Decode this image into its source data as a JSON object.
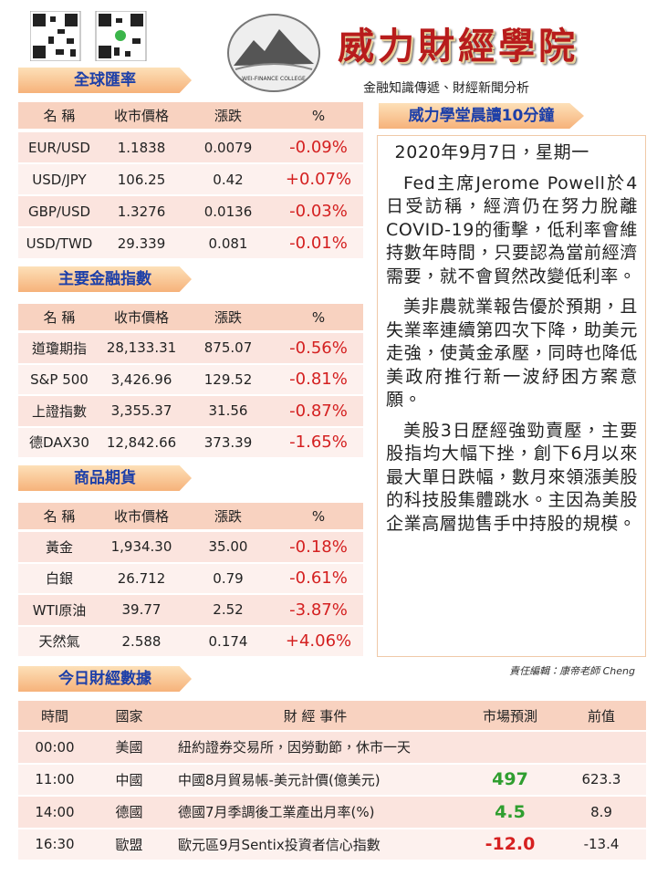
{
  "header": {
    "title": "威力財經學院",
    "subtitle": "金融知識傳遞、財經新聞分析",
    "logo_text": "WEI-FINANCE COLLEGE"
  },
  "fx": {
    "title": "全球匯率",
    "header": [
      "名 稱",
      "收市價格",
      "漲跌",
      "%"
    ],
    "rows": [
      [
        "EUR/USD",
        "1.1838",
        "0.0079",
        "-0.09%"
      ],
      [
        "USD/JPY",
        "106.25",
        "0.42",
        "+0.07%"
      ],
      [
        "GBP/USD",
        "1.3276",
        "0.0136",
        "-0.03%"
      ],
      [
        "USD/TWD",
        "29.339",
        "0.081",
        "-0.01%"
      ]
    ]
  },
  "indices": {
    "title": "主要金融指數",
    "header": [
      "名 稱",
      "收市價格",
      "漲跌",
      "%"
    ],
    "rows": [
      [
        "道瓊期指",
        "28,133.31",
        "875.07",
        "-0.56%"
      ],
      [
        "S&P 500",
        "3,426.96",
        "129.52",
        "-0.81%"
      ],
      [
        "上證指數",
        "3,355.37",
        "31.56",
        "-0.87%"
      ],
      [
        "德DAX30",
        "12,842.66",
        "373.39",
        "-1.65%"
      ]
    ]
  },
  "commodities": {
    "title": "商品期貨",
    "header": [
      "名 稱",
      "收市價格",
      "漲跌",
      "%"
    ],
    "rows": [
      [
        "黃金",
        "1,934.30",
        "35.00",
        "-0.18%"
      ],
      [
        "白銀",
        "26.712",
        "0.79",
        "-0.61%"
      ],
      [
        "WTI原油",
        "39.77",
        "2.52",
        "-3.87%"
      ],
      [
        "天然氣",
        "2.588",
        "0.174",
        "+4.06%"
      ]
    ]
  },
  "article": {
    "title": "威力學堂晨讀10分鐘",
    "date": "2020年9月7日，星期一",
    "paragraphs": [
      "Fed主席Jerome Powell於4日受訪稱，經濟仍在努力脫離COVID-19的衝擊，低利率會維持數年時間，只要認為當前經濟需要，就不會貿然改變低利率。",
      "美非農就業報告優於預期，且失業率連續第四次下降，助美元走強，使黃金承壓，同時也降低美政府推行新一波紓困方案意願。",
      "美股3日歷經強勁賣壓，主要股指均大幅下挫，創下6月以來最大單日跌幅，數月來領漲美股的科技股集體跳水。主因為美股企業高層拋售手中持股的規模。"
    ],
    "editor": "責任編輯：康帝老師 Cheng"
  },
  "calendar": {
    "title": "今日財經數據",
    "header": [
      "時間",
      "國家",
      "財 經 事件",
      "市場預測",
      "前值"
    ],
    "rows": [
      {
        "time": "00:00",
        "country": "美國",
        "event": "紐約證券交易所，因勞動節，休市一天"
      },
      {
        "time": "11:00",
        "country": "中國",
        "event": "中國8月貿易帳-美元計價(億美元)",
        "forecast": "497",
        "previous": "623.3",
        "forecast_color": "#2f9e2f"
      },
      {
        "time": "14:00",
        "country": "德國",
        "event": "德國7月季調後工業產出月率(%)",
        "forecast": "4.5",
        "previous": "8.9",
        "forecast_color": "#2f9e2f"
      },
      {
        "time": "16:30",
        "country": "歐盟",
        "event": "歐元區9月Sentix投資者信心指數",
        "forecast": "-12.0",
        "previous": "-13.4",
        "forecast_color": "#d62020"
      }
    ]
  }
}
